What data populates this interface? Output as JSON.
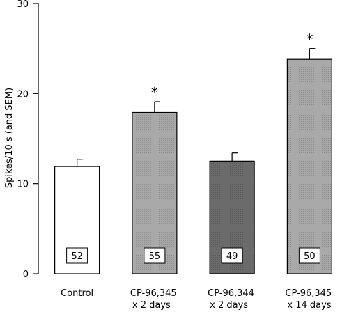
{
  "chart_data": {
    "type": "bar",
    "title": "",
    "xlabel": "",
    "ylabel": "Spikes/10 s  (and SEM)",
    "ylim": [
      0,
      30
    ],
    "yticks": [
      "0",
      "10",
      "20",
      "30"
    ],
    "grid": false,
    "categories": [
      [
        "Control"
      ],
      [
        "CP-96,345",
        "x 2 days"
      ],
      [
        "CP-96,344",
        "x 2 days"
      ],
      [
        "CP-96,345",
        "x 14 days"
      ]
    ],
    "values": [
      11.9,
      17.9,
      12.5,
      23.8
    ],
    "sem": [
      0.8,
      1.2,
      0.9,
      1.2
    ],
    "n_labels": [
      "52",
      "55",
      "49",
      "50"
    ],
    "significance": [
      "",
      "*",
      "",
      "*"
    ],
    "colors": [
      "#ffffff",
      "#a9a9a9",
      "#6b6b6b",
      "#a9a9a9"
    ]
  }
}
